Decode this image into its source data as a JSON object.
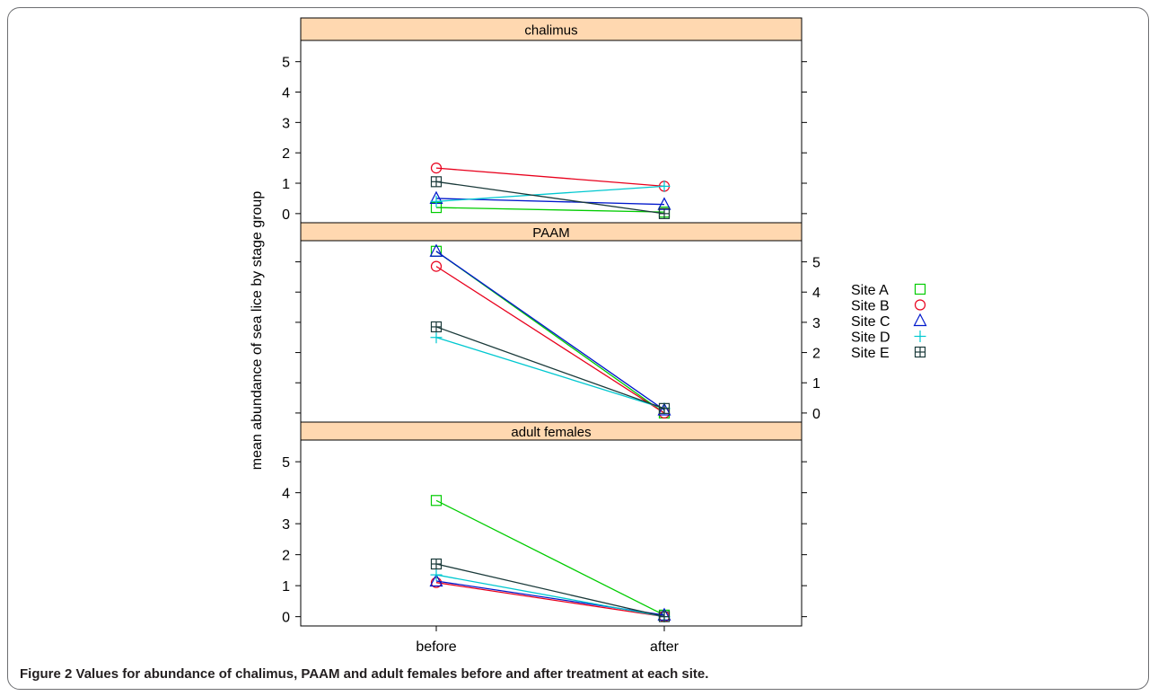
{
  "chart_data": {
    "type": "line",
    "layout": "stacked-panels",
    "ylabel": "mean abundance of sea lice by stage group",
    "categories": [
      "before",
      "after"
    ],
    "ylim": [
      -0.3,
      5.7
    ],
    "yticks": [
      0,
      1,
      2,
      3,
      4,
      5
    ],
    "grid": false,
    "legend_position": "right",
    "panels": [
      {
        "title": "chalimus",
        "series": [
          {
            "name": "Site A",
            "values": [
              0.2,
              0.05
            ]
          },
          {
            "name": "Site B",
            "values": [
              1.5,
              0.9
            ]
          },
          {
            "name": "Site C",
            "values": [
              0.5,
              0.3
            ]
          },
          {
            "name": "Site D",
            "values": [
              0.4,
              0.9
            ]
          },
          {
            "name": "Site E",
            "values": [
              1.05,
              0.0
            ]
          }
        ]
      },
      {
        "title": "PAAM",
        "series": [
          {
            "name": "Site A",
            "values": [
              5.35,
              0.0
            ]
          },
          {
            "name": "Site B",
            "values": [
              4.85,
              0.0
            ]
          },
          {
            "name": "Site C",
            "values": [
              5.35,
              0.1
            ]
          },
          {
            "name": "Site D",
            "values": [
              2.5,
              0.15
            ]
          },
          {
            "name": "Site E",
            "values": [
              2.85,
              0.15
            ]
          }
        ]
      },
      {
        "title": "adult females",
        "series": [
          {
            "name": "Site A",
            "values": [
              3.75,
              0.05
            ]
          },
          {
            "name": "Site B",
            "values": [
              1.1,
              0.0
            ]
          },
          {
            "name": "Site C",
            "values": [
              1.15,
              0.05
            ]
          },
          {
            "name": "Site D",
            "values": [
              1.35,
              0.0
            ]
          },
          {
            "name": "Site E",
            "values": [
              1.7,
              0.0
            ]
          }
        ]
      }
    ]
  },
  "legend": {
    "entries": [
      {
        "label": "Site A",
        "symbol": "square",
        "color": "#00cc00"
      },
      {
        "label": "Site B",
        "symbol": "circle",
        "color": "#e8001c"
      },
      {
        "label": "Site C",
        "symbol": "triangle",
        "color": "#0018cc"
      },
      {
        "label": "Site D",
        "symbol": "plus",
        "color": "#00c8d0"
      },
      {
        "label": "Site E",
        "symbol": "boxplus",
        "color": "#1a3a3a"
      }
    ]
  },
  "strip_color": "#ffd8b0",
  "caption": {
    "label": "Figure 2",
    "text": "Values for abundance of chalimus, PAAM and adult females before and after treatment at each site."
  }
}
